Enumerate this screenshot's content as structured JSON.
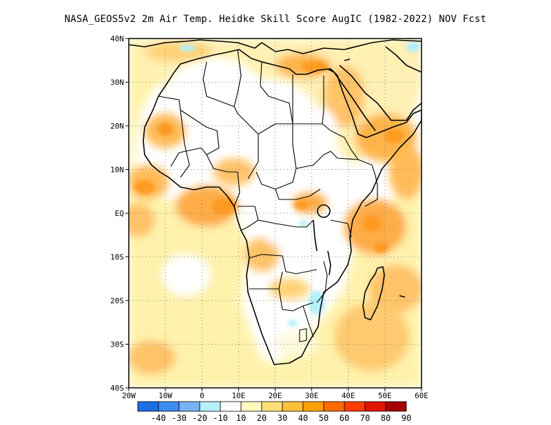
{
  "title": "NASA_GEOS5v2  2m Air Temp. Heidke Skill Score AugIC (1982-2022) NOV Fcst",
  "map": {
    "lat_labels": [
      "40N",
      "30N",
      "20N",
      "10N",
      "EQ",
      "10S",
      "20S",
      "30S",
      "40S"
    ],
    "lon_labels": [
      "20W",
      "10W",
      "0",
      "10E",
      "20E",
      "30E",
      "40E",
      "50E",
      "60E"
    ],
    "lat_range": [
      -40,
      40
    ],
    "lon_range": [
      -20,
      60
    ],
    "grid": "dotted",
    "region": "Africa"
  },
  "colorbar": {
    "labels": [
      "-40",
      "-30",
      "-20",
      "-10",
      "10",
      "20",
      "30",
      "40",
      "50",
      "60",
      "70",
      "80",
      "90"
    ],
    "colors": [
      "#1e6ee6",
      "#3c8cf0",
      "#78b4f5",
      "#b4f0fa",
      "#ffffff",
      "#fffabe",
      "#ffe178",
      "#ffc03c",
      "#ffa000",
      "#ff6a00",
      "#ff3c00",
      "#e11400",
      "#a50000"
    ]
  }
}
